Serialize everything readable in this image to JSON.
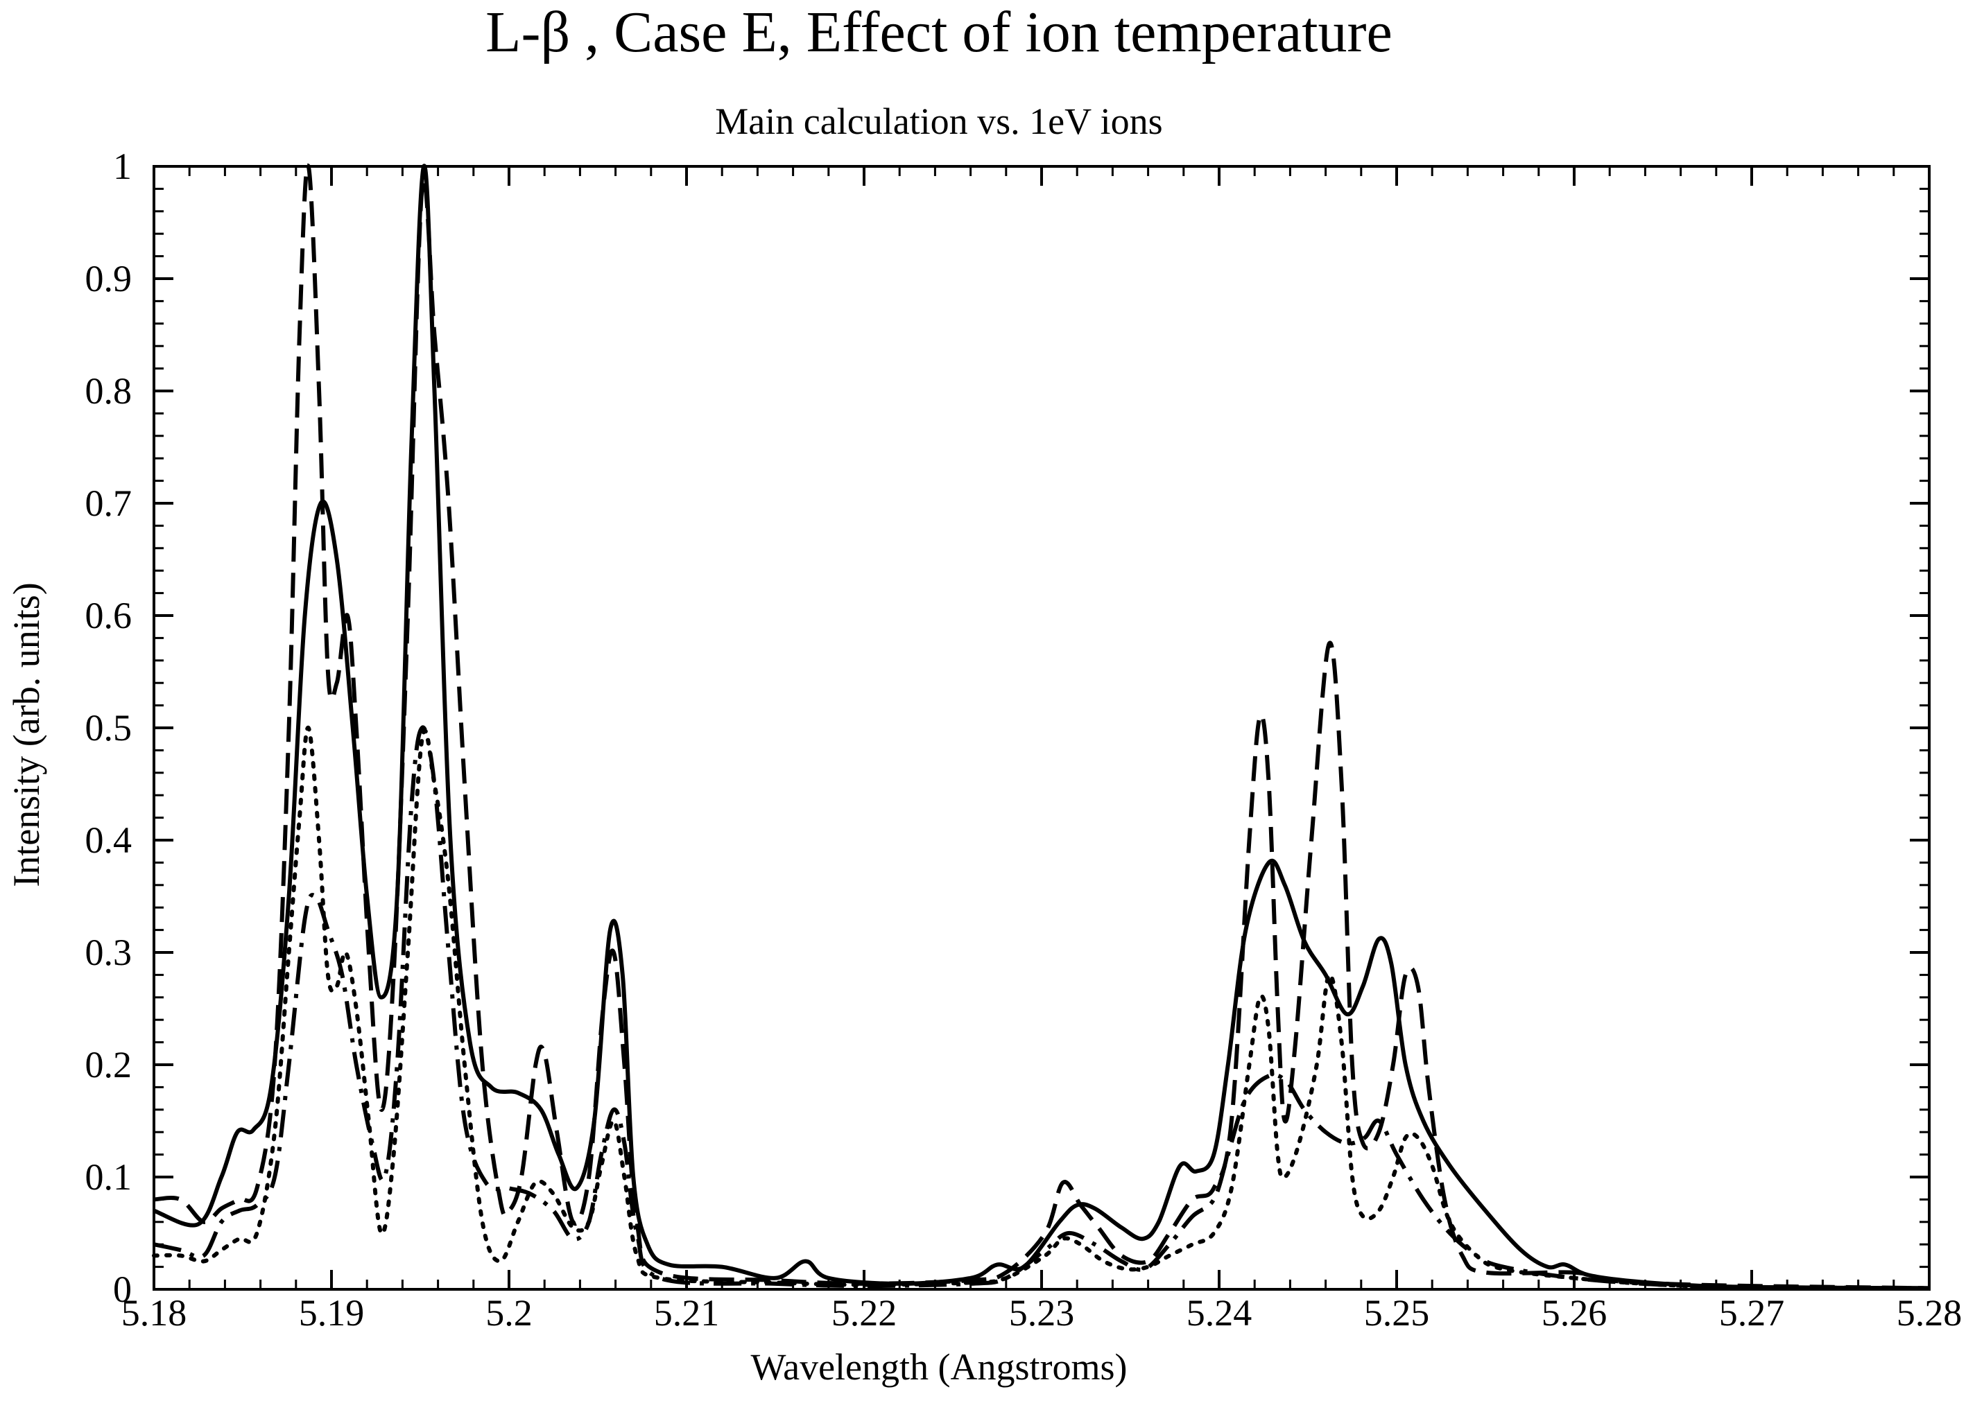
{
  "chart_data": {
    "type": "line",
    "title": "L-β , Case E, Effect of ion temperature",
    "subtitle": "Main calculation vs. 1eV ions",
    "xlabel": "Wavelength (Angstroms)",
    "ylabel": "Intensity (arb. units)",
    "xlim": [
      5.18,
      5.28
    ],
    "ylim": [
      0,
      1
    ],
    "xticks": [
      5.18,
      5.19,
      5.2,
      5.21,
      5.22,
      5.23,
      5.24,
      5.25,
      5.26,
      5.27,
      5.28
    ],
    "xtick_labels": [
      "5.18",
      "5.19",
      "5.2",
      "5.21",
      "5.22",
      "5.23",
      "5.24",
      "5.25",
      "5.26",
      "5.27",
      "5.28"
    ],
    "yticks": [
      0,
      0.1,
      0.2,
      0.3,
      0.4,
      0.5,
      0.6,
      0.7,
      0.8,
      0.9,
      1
    ],
    "ytick_labels": [
      "0",
      "0.1",
      "0.2",
      "0.3",
      "0.4",
      "0.5",
      "0.6",
      "0.7",
      "0.8",
      "0.9",
      "1"
    ],
    "x_minor_step": 0.002,
    "y_minor_step": 0.02,
    "grid": false,
    "legend": "none",
    "series": [
      {
        "name": "solid",
        "style": "solid",
        "color": "#000000",
        "points": [
          [
            5.18,
            0.07
          ],
          [
            5.1825,
            0.058
          ],
          [
            5.1838,
            0.1
          ],
          [
            5.1847,
            0.14
          ],
          [
            5.1856,
            0.142
          ],
          [
            5.1866,
            0.18
          ],
          [
            5.1876,
            0.35
          ],
          [
            5.1885,
            0.6
          ],
          [
            5.1894,
            0.7
          ],
          [
            5.1903,
            0.65
          ],
          [
            5.1912,
            0.5
          ],
          [
            5.192,
            0.35
          ],
          [
            5.1928,
            0.26
          ],
          [
            5.1937,
            0.35
          ],
          [
            5.1945,
            0.75
          ],
          [
            5.1952,
            1.0
          ],
          [
            5.1958,
            0.8
          ],
          [
            5.1967,
            0.4
          ],
          [
            5.1978,
            0.22
          ],
          [
            5.199,
            0.18
          ],
          [
            5.2005,
            0.175
          ],
          [
            5.2018,
            0.16
          ],
          [
            5.2028,
            0.12
          ],
          [
            5.2038,
            0.09
          ],
          [
            5.2048,
            0.15
          ],
          [
            5.2057,
            0.32
          ],
          [
            5.2064,
            0.28
          ],
          [
            5.207,
            0.1
          ],
          [
            5.2078,
            0.04
          ],
          [
            5.209,
            0.022
          ],
          [
            5.212,
            0.02
          ],
          [
            5.215,
            0.01
          ],
          [
            5.2167,
            0.025
          ],
          [
            5.218,
            0.01
          ],
          [
            5.222,
            0.005
          ],
          [
            5.226,
            0.01
          ],
          [
            5.2275,
            0.022
          ],
          [
            5.229,
            0.02
          ],
          [
            5.231,
            0.06
          ],
          [
            5.232,
            0.075
          ],
          [
            5.233,
            0.072
          ],
          [
            5.2345,
            0.055
          ],
          [
            5.2357,
            0.045
          ],
          [
            5.2366,
            0.06
          ],
          [
            5.2378,
            0.11
          ],
          [
            5.2387,
            0.105
          ],
          [
            5.2397,
            0.12
          ],
          [
            5.2405,
            0.2
          ],
          [
            5.2415,
            0.32
          ],
          [
            5.2428,
            0.38
          ],
          [
            5.2437,
            0.36
          ],
          [
            5.2448,
            0.31
          ],
          [
            5.246,
            0.28
          ],
          [
            5.2472,
            0.245
          ],
          [
            5.2481,
            0.27
          ],
          [
            5.249,
            0.312
          ],
          [
            5.2497,
            0.29
          ],
          [
            5.2505,
            0.2
          ],
          [
            5.2515,
            0.15
          ],
          [
            5.253,
            0.11
          ],
          [
            5.255,
            0.07
          ],
          [
            5.257,
            0.035
          ],
          [
            5.2585,
            0.02
          ],
          [
            5.2595,
            0.022
          ],
          [
            5.261,
            0.012
          ],
          [
            5.265,
            0.005
          ],
          [
            5.27,
            0.002
          ],
          [
            5.28,
            0.001
          ]
        ]
      },
      {
        "name": "dashed",
        "style": "dashed",
        "color": "#000000",
        "points": [
          [
            5.18,
            0.08
          ],
          [
            5.1815,
            0.08
          ],
          [
            5.1828,
            0.06
          ],
          [
            5.1838,
            0.072
          ],
          [
            5.1848,
            0.08
          ],
          [
            5.1858,
            0.09
          ],
          [
            5.1868,
            0.2
          ],
          [
            5.1876,
            0.5
          ],
          [
            5.1882,
            0.85
          ],
          [
            5.1887,
            1.0
          ],
          [
            5.1893,
            0.8
          ],
          [
            5.1898,
            0.55
          ],
          [
            5.1903,
            0.54
          ],
          [
            5.1909,
            0.6
          ],
          [
            5.1914,
            0.5
          ],
          [
            5.1921,
            0.3
          ],
          [
            5.1928,
            0.16
          ],
          [
            5.1935,
            0.28
          ],
          [
            5.1943,
            0.6
          ],
          [
            5.1951,
            0.98
          ],
          [
            5.1958,
            0.85
          ],
          [
            5.1966,
            0.7
          ],
          [
            5.1975,
            0.45
          ],
          [
            5.1985,
            0.2
          ],
          [
            5.1995,
            0.08
          ],
          [
            5.2,
            0.07
          ],
          [
            5.2007,
            0.1
          ],
          [
            5.2015,
            0.2
          ],
          [
            5.202,
            0.21
          ],
          [
            5.2027,
            0.14
          ],
          [
            5.2036,
            0.06
          ],
          [
            5.2045,
            0.1
          ],
          [
            5.2053,
            0.25
          ],
          [
            5.2059,
            0.3
          ],
          [
            5.2065,
            0.2
          ],
          [
            5.2072,
            0.06
          ],
          [
            5.2085,
            0.015
          ],
          [
            5.215,
            0.008
          ],
          [
            5.22,
            0.005
          ],
          [
            5.226,
            0.008
          ],
          [
            5.228,
            0.015
          ],
          [
            5.2302,
            0.05
          ],
          [
            5.2312,
            0.095
          ],
          [
            5.2322,
            0.075
          ],
          [
            5.2332,
            0.055
          ],
          [
            5.2345,
            0.03
          ],
          [
            5.236,
            0.025
          ],
          [
            5.2372,
            0.05
          ],
          [
            5.2385,
            0.08
          ],
          [
            5.2397,
            0.09
          ],
          [
            5.2407,
            0.15
          ],
          [
            5.2417,
            0.4
          ],
          [
            5.2423,
            0.51
          ],
          [
            5.2428,
            0.45
          ],
          [
            5.2433,
            0.25
          ],
          [
            5.2437,
            0.15
          ],
          [
            5.2443,
            0.22
          ],
          [
            5.2452,
            0.4
          ],
          [
            5.2462,
            0.575
          ],
          [
            5.2469,
            0.45
          ],
          [
            5.2475,
            0.2
          ],
          [
            5.2481,
            0.13
          ],
          [
            5.249,
            0.14
          ],
          [
            5.2498,
            0.2
          ],
          [
            5.2505,
            0.28
          ],
          [
            5.2512,
            0.27
          ],
          [
            5.2518,
            0.18
          ],
          [
            5.2527,
            0.08
          ],
          [
            5.2537,
            0.03
          ],
          [
            5.255,
            0.015
          ],
          [
            5.26,
            0.015
          ],
          [
            5.262,
            0.008
          ],
          [
            5.265,
            0.005
          ],
          [
            5.27,
            0.003
          ],
          [
            5.28,
            0.001
          ]
        ]
      },
      {
        "name": "dotted",
        "style": "dotted",
        "color": "#000000",
        "points": [
          [
            5.18,
            0.03
          ],
          [
            5.1815,
            0.03
          ],
          [
            5.1828,
            0.025
          ],
          [
            5.1838,
            0.035
          ],
          [
            5.1848,
            0.045
          ],
          [
            5.1858,
            0.05
          ],
          [
            5.1868,
            0.14
          ],
          [
            5.1876,
            0.3
          ],
          [
            5.1882,
            0.42
          ],
          [
            5.1887,
            0.5
          ],
          [
            5.1893,
            0.4
          ],
          [
            5.1898,
            0.28
          ],
          [
            5.1903,
            0.27
          ],
          [
            5.1908,
            0.3
          ],
          [
            5.1914,
            0.25
          ],
          [
            5.1921,
            0.15
          ],
          [
            5.1928,
            0.05
          ],
          [
            5.1935,
            0.12
          ],
          [
            5.1943,
            0.3
          ],
          [
            5.1951,
            0.49
          ],
          [
            5.1958,
            0.45
          ],
          [
            5.1966,
            0.36
          ],
          [
            5.1975,
            0.2
          ],
          [
            5.1985,
            0.06
          ],
          [
            5.1995,
            0.025
          ],
          [
            5.2005,
            0.06
          ],
          [
            5.2015,
            0.095
          ],
          [
            5.2025,
            0.085
          ],
          [
            5.2036,
            0.055
          ],
          [
            5.2045,
            0.06
          ],
          [
            5.2052,
            0.11
          ],
          [
            5.2059,
            0.15
          ],
          [
            5.2065,
            0.1
          ],
          [
            5.2072,
            0.03
          ],
          [
            5.2085,
            0.01
          ],
          [
            5.215,
            0.006
          ],
          [
            5.22,
            0.004
          ],
          [
            5.226,
            0.006
          ],
          [
            5.228,
            0.01
          ],
          [
            5.2302,
            0.03
          ],
          [
            5.2312,
            0.045
          ],
          [
            5.2322,
            0.04
          ],
          [
            5.2335,
            0.025
          ],
          [
            5.2348,
            0.018
          ],
          [
            5.236,
            0.02
          ],
          [
            5.2372,
            0.03
          ],
          [
            5.2385,
            0.04
          ],
          [
            5.2397,
            0.05
          ],
          [
            5.2407,
            0.09
          ],
          [
            5.2417,
            0.2
          ],
          [
            5.2423,
            0.26
          ],
          [
            5.2428,
            0.23
          ],
          [
            5.2433,
            0.12
          ],
          [
            5.2437,
            0.1
          ],
          [
            5.2445,
            0.13
          ],
          [
            5.2455,
            0.2
          ],
          [
            5.2462,
            0.28
          ],
          [
            5.2469,
            0.22
          ],
          [
            5.2475,
            0.1
          ],
          [
            5.2481,
            0.065
          ],
          [
            5.249,
            0.07
          ],
          [
            5.2498,
            0.1
          ],
          [
            5.2505,
            0.135
          ],
          [
            5.2512,
            0.135
          ],
          [
            5.252,
            0.11
          ],
          [
            5.253,
            0.06
          ],
          [
            5.2545,
            0.03
          ],
          [
            5.256,
            0.018
          ],
          [
            5.26,
            0.01
          ],
          [
            5.265,
            0.004
          ],
          [
            5.27,
            0.002
          ],
          [
            5.28,
            0.001
          ]
        ]
      },
      {
        "name": "dash-dot",
        "style": "dashdot",
        "color": "#000000",
        "points": [
          [
            5.18,
            0.04
          ],
          [
            5.1815,
            0.035
          ],
          [
            5.1828,
            0.03
          ],
          [
            5.1838,
            0.06
          ],
          [
            5.1848,
            0.07
          ],
          [
            5.1858,
            0.075
          ],
          [
            5.1868,
            0.1
          ],
          [
            5.1876,
            0.2
          ],
          [
            5.1885,
            0.33
          ],
          [
            5.1891,
            0.35
          ],
          [
            5.1898,
            0.32
          ],
          [
            5.1906,
            0.28
          ],
          [
            5.1914,
            0.2
          ],
          [
            5.1923,
            0.13
          ],
          [
            5.193,
            0.1
          ],
          [
            5.1937,
            0.2
          ],
          [
            5.1945,
            0.43
          ],
          [
            5.1951,
            0.5
          ],
          [
            5.1958,
            0.45
          ],
          [
            5.1966,
            0.3
          ],
          [
            5.1975,
            0.15
          ],
          [
            5.1987,
            0.095
          ],
          [
            5.2,
            0.09
          ],
          [
            5.2012,
            0.085
          ],
          [
            5.2025,
            0.07
          ],
          [
            5.2036,
            0.045
          ],
          [
            5.2045,
            0.06
          ],
          [
            5.2052,
            0.12
          ],
          [
            5.2059,
            0.16
          ],
          [
            5.2065,
            0.13
          ],
          [
            5.2072,
            0.05
          ],
          [
            5.2085,
            0.01
          ],
          [
            5.215,
            0.005
          ],
          [
            5.22,
            0.003
          ],
          [
            5.226,
            0.005
          ],
          [
            5.228,
            0.01
          ],
          [
            5.2302,
            0.035
          ],
          [
            5.2315,
            0.05
          ],
          [
            5.233,
            0.04
          ],
          [
            5.2345,
            0.025
          ],
          [
            5.2358,
            0.018
          ],
          [
            5.2372,
            0.04
          ],
          [
            5.2385,
            0.065
          ],
          [
            5.2397,
            0.08
          ],
          [
            5.2405,
            0.12
          ],
          [
            5.2415,
            0.17
          ],
          [
            5.2428,
            0.19
          ],
          [
            5.2438,
            0.185
          ],
          [
            5.2448,
            0.16
          ],
          [
            5.246,
            0.14
          ],
          [
            5.2472,
            0.13
          ],
          [
            5.2482,
            0.135
          ],
          [
            5.249,
            0.15
          ],
          [
            5.25,
            0.12
          ],
          [
            5.2515,
            0.08
          ],
          [
            5.253,
            0.05
          ],
          [
            5.2545,
            0.03
          ],
          [
            5.256,
            0.02
          ],
          [
            5.26,
            0.01
          ],
          [
            5.265,
            0.004
          ],
          [
            5.27,
            0.002
          ],
          [
            5.28,
            0.001
          ]
        ]
      }
    ]
  }
}
